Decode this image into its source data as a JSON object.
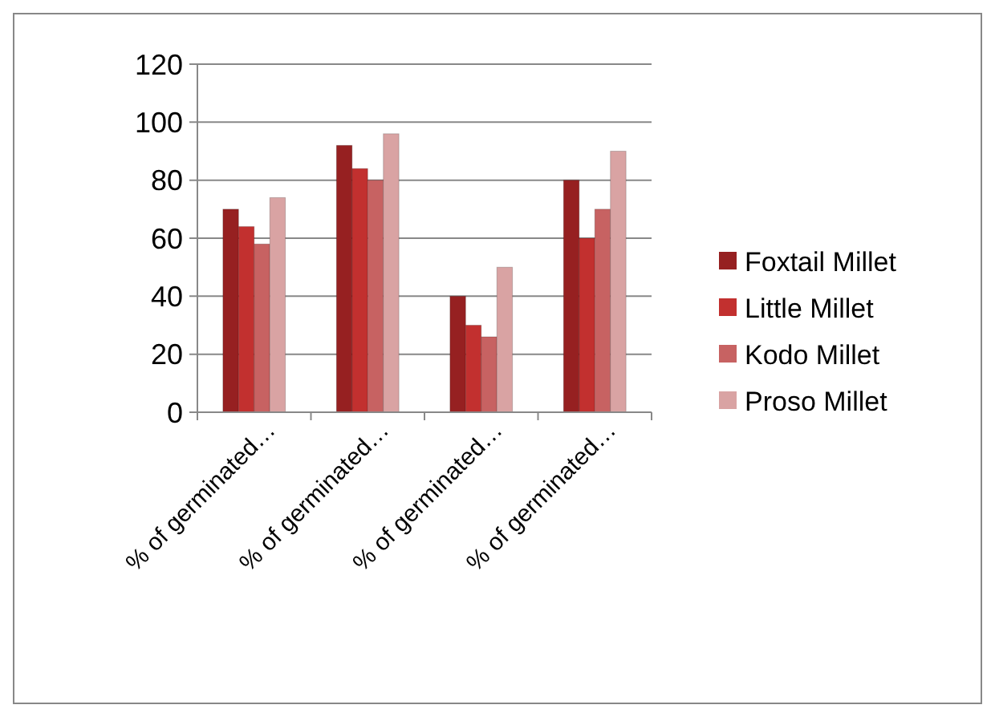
{
  "chart_data": {
    "type": "bar",
    "categories": [
      "% of germinated…",
      "% of germinated…",
      "% of germinated…",
      "% of germinated…"
    ],
    "series": [
      {
        "name": "Foxtail Millet",
        "color": "#962021",
        "values": [
          70,
          92,
          40,
          80
        ]
      },
      {
        "name": "Little Millet",
        "color": "#c2302f",
        "values": [
          64,
          84,
          30,
          60
        ]
      },
      {
        "name": "Kodo Millet",
        "color": "#c76262",
        "values": [
          58,
          80,
          26,
          70
        ]
      },
      {
        "name": "Proso Millet",
        "color": "#d9a3a3",
        "values": [
          74,
          96,
          50,
          90
        ]
      }
    ],
    "ylim": [
      0,
      120
    ],
    "yticks": [
      0,
      20,
      40,
      60,
      80,
      100,
      120
    ],
    "grid": "y",
    "legend": "right"
  }
}
